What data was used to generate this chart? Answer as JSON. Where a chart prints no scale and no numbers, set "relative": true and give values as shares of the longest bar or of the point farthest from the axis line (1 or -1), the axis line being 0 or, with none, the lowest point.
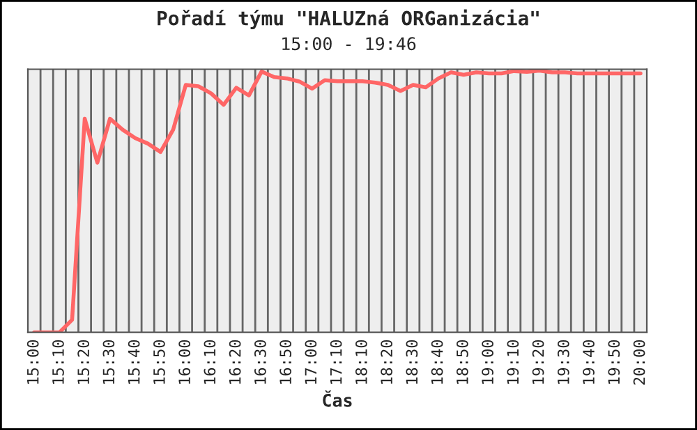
{
  "chart_data": {
    "type": "line",
    "title": "Pořadí týmu \"HALUZná ORGanizácia\"",
    "subtitle": "15:00 - 19:46",
    "xlabel": "Čas",
    "categories": [
      "15:00",
      null,
      "15:10",
      null,
      "15:20",
      null,
      "15:30",
      null,
      "15:40",
      null,
      "15:50",
      null,
      "16:00",
      null,
      "16:10",
      null,
      "16:20",
      null,
      "16:30",
      null,
      "16:50",
      null,
      "17:00",
      null,
      "17:10",
      null,
      "18:10",
      null,
      "18:20",
      null,
      "18:30",
      null,
      "18:40",
      null,
      "18:50",
      null,
      "19:00",
      null,
      "19:10",
      null,
      "19:20",
      null,
      "19:30",
      null,
      "19:40",
      null,
      "19:50",
      null,
      "20:00"
    ],
    "series": [
      {
        "color": "#ff6666",
        "values": [
          0,
          0,
          0,
          0.048,
          0.816,
          0.648,
          0.816,
          0.774,
          0.742,
          0.721,
          0.689,
          0.774,
          0.945,
          0.94,
          0.913,
          0.869,
          0.934,
          0.905,
          0.996,
          0.975,
          0.97,
          0.958,
          0.931,
          0.963,
          0.959,
          0.959,
          0.959,
          0.954,
          0.945,
          0.922,
          0.945,
          0.936,
          0.97,
          0.993,
          0.984,
          0.993,
          0.989,
          0.989,
          0.998,
          0.995,
          1,
          0.993,
          0.993,
          0.989,
          0.989,
          0.989,
          0.989,
          0.989,
          0.989
        ]
      }
    ],
    "relative": true,
    "tick_labels": "x",
    "grid": "x",
    "legend": false,
    "marker": "none",
    "line_style": "solid"
  }
}
